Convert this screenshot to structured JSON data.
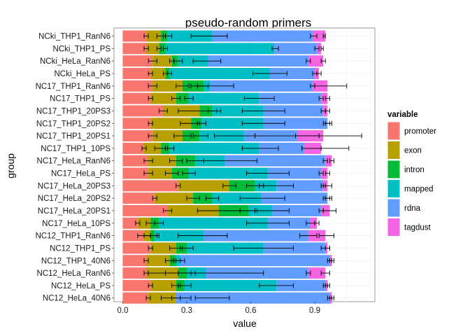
{
  "chart_data": {
    "type": "bar",
    "orientation": "horizontal",
    "stacked": true,
    "title": "pseudo-random primers",
    "xlabel": "value",
    "ylabel": "group",
    "xlim": [
      0,
      1.2
    ],
    "xticks": [
      "0.0",
      "0.3",
      "0.6",
      "0.9"
    ],
    "xtick_values": [
      0,
      0.3,
      0.6,
      0.9
    ],
    "grid": true,
    "legend_position": "right",
    "legend_title": "variable",
    "series": [
      {
        "name": "promoter",
        "color": "#F8766D"
      },
      {
        "name": "exon",
        "color": "#B79F00"
      },
      {
        "name": "intron",
        "color": "#00BA38"
      },
      {
        "name": "mapped",
        "color": "#00BFC4"
      },
      {
        "name": "rdna",
        "color": "#619CFF"
      },
      {
        "name": "tagdust",
        "color": "#F564E3"
      }
    ],
    "categories": [
      "NCki_THP1_RanN6",
      "NCki_THP1_PS",
      "NCki_HeLa_RanN6",
      "NCki_HeLa_PS",
      "NC17_THP1_RanN6",
      "NC17_THP1_PS",
      "NC17_THP1_20PS3",
      "NC17_THP1_20PS2",
      "NC17_THP1_20PS1",
      "NC17_THP1_10PS",
      "NC17_HeLa_RanN6",
      "NC17_HeLa_PS",
      "NC17_HeLa_20PS3",
      "NC17_HeLa_20PS2",
      "NC17_HeLa_20PS1",
      "NC17_HeLa_10PS",
      "NC12_THP1_RanN6",
      "NC12_THP1_PS",
      "NC12_THP1_40N6",
      "NC12_HeLa_RanN6",
      "NC12_HeLa_PS",
      "NC12_HeLa_40N6"
    ],
    "cumulative": [
      [
        0.11,
        0.18,
        0.21,
        0.42,
        0.89,
        0.95
      ],
      [
        0.11,
        0.17,
        0.2,
        0.71,
        0.91,
        0.93
      ],
      [
        0.14,
        0.23,
        0.26,
        0.4,
        0.87,
        0.94
      ],
      [
        0.13,
        0.2,
        0.22,
        0.69,
        0.9,
        0.92
      ],
      [
        0.14,
        0.28,
        0.38,
        0.41,
        0.89,
        0.96
      ],
      [
        0.13,
        0.25,
        0.31,
        0.64,
        0.93,
        0.96
      ],
      [
        0.19,
        0.36,
        0.42,
        0.66,
        0.94,
        0.96
      ],
      [
        0.13,
        0.32,
        0.37,
        0.66,
        0.96,
        0.96
      ],
      [
        0.14,
        0.28,
        0.36,
        0.57,
        0.82,
        0.94
      ],
      [
        0.1,
        0.18,
        0.22,
        0.64,
        0.85,
        0.93
      ],
      [
        0.12,
        0.25,
        0.34,
        0.48,
        0.95,
        0.98
      ],
      [
        0.12,
        0.23,
        0.31,
        0.68,
        0.93,
        0.96
      ],
      [
        0.26,
        0.5,
        0.62,
        0.72,
        0.94,
        0.96
      ],
      [
        0.15,
        0.33,
        0.42,
        0.65,
        0.96,
        0.96
      ],
      [
        0.21,
        0.45,
        0.59,
        0.7,
        0.93,
        0.97
      ],
      [
        0.07,
        0.13,
        0.17,
        0.68,
        0.88,
        0.91
      ],
      [
        0.1,
        0.13,
        0.15,
        0.38,
        0.87,
        0.95
      ],
      [
        0.13,
        0.25,
        0.3,
        0.66,
        0.95,
        0.96
      ],
      [
        0.11,
        0.22,
        0.25,
        0.27,
        0.97,
        0.98
      ],
      [
        0.11,
        0.26,
        0.3,
        0.39,
        0.87,
        0.95
      ],
      [
        0.13,
        0.25,
        0.29,
        0.72,
        0.95,
        0.96
      ],
      [
        0.12,
        0.25,
        0.25,
        0.25,
        0.97,
        0.98
      ]
    ],
    "error_bars": [
      [
        0.1,
        0.12,
        0.16,
        0.2,
        0.19,
        0.23,
        0.32,
        0.49,
        0.88,
        0.91,
        0.94,
        0.95
      ],
      [
        0.1,
        0.12,
        0.16,
        0.18,
        0.19,
        0.21,
        0.7,
        0.73,
        0.9,
        0.92,
        0.93,
        0.94
      ],
      [
        0.12,
        0.16,
        0.22,
        0.24,
        0.24,
        0.28,
        0.33,
        0.46,
        0.86,
        0.88,
        0.93,
        0.95
      ],
      [
        0.12,
        0.14,
        0.19,
        0.21,
        0.21,
        0.23,
        0.61,
        0.77,
        0.89,
        0.91,
        0.91,
        0.93
      ],
      [
        0.12,
        0.16,
        0.25,
        0.31,
        0.35,
        0.4,
        0.32,
        0.52,
        0.88,
        0.9,
        0.9,
        1.05
      ],
      [
        0.12,
        0.14,
        0.23,
        0.27,
        0.29,
        0.33,
        0.57,
        0.71,
        0.92,
        0.94,
        0.95,
        0.97
      ],
      [
        0.17,
        0.21,
        0.26,
        0.46,
        0.4,
        0.44,
        0.56,
        0.76,
        0.93,
        0.95,
        0.95,
        0.97
      ],
      [
        0.12,
        0.14,
        0.27,
        0.36,
        0.35,
        0.39,
        0.56,
        0.76,
        0.94,
        0.97,
        0.95,
        0.98
      ],
      [
        0.12,
        0.16,
        0.24,
        0.32,
        0.33,
        0.4,
        0.43,
        0.62,
        0.62,
        0.92,
        0.81,
        1.12
      ],
      [
        0.09,
        0.11,
        0.15,
        0.21,
        0.2,
        0.24,
        0.56,
        0.73,
        0.84,
        0.93,
        0.84,
        1.06
      ],
      [
        0.1,
        0.14,
        0.22,
        0.28,
        0.3,
        0.38,
        0.38,
        0.63,
        0.94,
        0.96,
        0.97,
        0.99
      ],
      [
        0.1,
        0.14,
        0.2,
        0.26,
        0.28,
        0.34,
        0.58,
        0.78,
        0.92,
        0.94,
        0.95,
        0.97
      ],
      [
        0.25,
        0.27,
        0.47,
        0.53,
        0.58,
        0.66,
        0.64,
        0.8,
        0.93,
        0.95,
        0.94,
        0.98
      ],
      [
        0.14,
        0.16,
        0.3,
        0.36,
        0.39,
        0.45,
        0.55,
        0.76,
        0.95,
        0.97,
        0.94,
        0.98
      ],
      [
        0.19,
        0.23,
        0.35,
        0.55,
        0.55,
        0.63,
        0.62,
        0.78,
        0.92,
        0.94,
        0.94,
        1.0
      ],
      [
        0.06,
        0.08,
        0.11,
        0.15,
        0.15,
        0.19,
        0.58,
        0.78,
        0.86,
        0.9,
        0.9,
        0.92
      ],
      [
        0.07,
        0.13,
        0.1,
        0.16,
        0.13,
        0.17,
        0.26,
        0.49,
        0.83,
        0.91,
        0.92,
        0.99
      ],
      [
        0.12,
        0.14,
        0.22,
        0.28,
        0.27,
        0.33,
        0.52,
        0.8,
        0.93,
        0.97,
        0.95,
        0.97
      ],
      [
        0.1,
        0.12,
        0.2,
        0.24,
        0.23,
        0.27,
        0.25,
        0.29,
        0.96,
        0.98,
        0.97,
        0.99
      ],
      [
        0.1,
        0.12,
        0.2,
        0.32,
        0.26,
        0.34,
        0.12,
        0.66,
        0.86,
        0.88,
        0.93,
        0.97
      ],
      [
        0.12,
        0.14,
        0.23,
        0.27,
        0.26,
        0.32,
        0.64,
        0.8,
        0.94,
        0.96,
        0.95,
        0.97
      ],
      [
        0.11,
        0.13,
        0.18,
        0.32,
        0.23,
        0.27,
        0.34,
        0.5,
        0.96,
        0.98,
        0.97,
        0.99
      ]
    ]
  }
}
